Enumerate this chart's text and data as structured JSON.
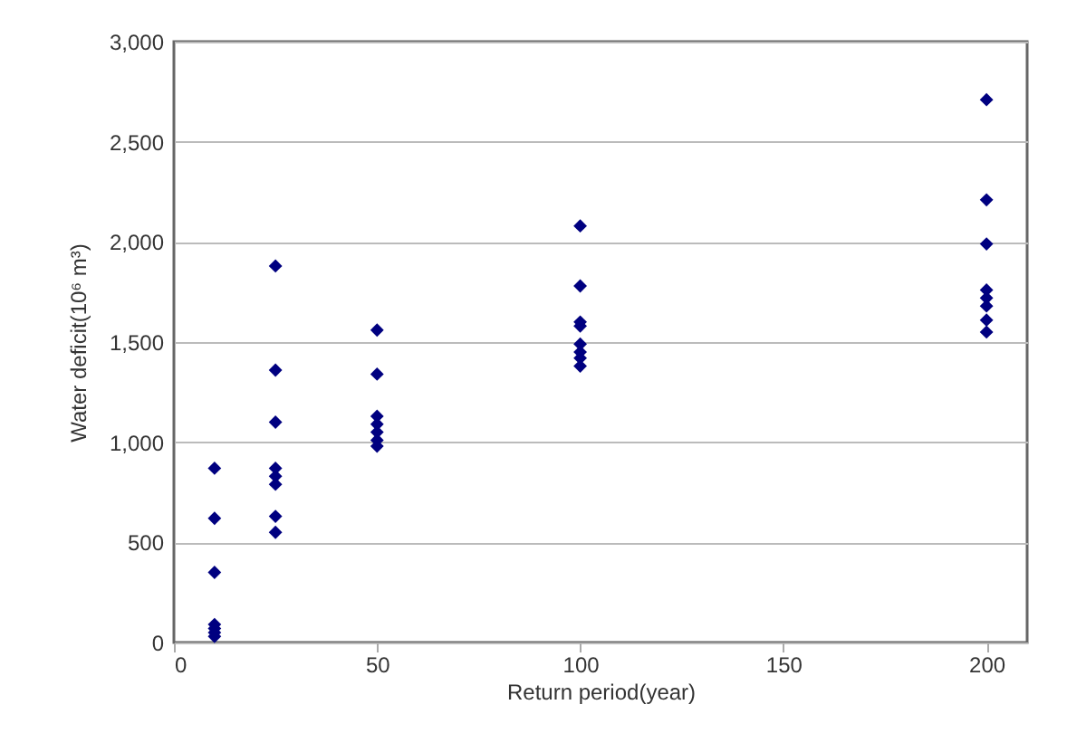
{
  "chart_data": {
    "type": "scatter",
    "xlabel": "Return period(year)",
    "ylabel": "Water deficit(10⁶ m³)",
    "x": [
      10,
      10,
      10,
      10,
      10,
      10,
      10,
      25,
      25,
      25,
      25,
      25,
      25,
      25,
      25,
      50,
      50,
      50,
      50,
      50,
      50,
      50,
      100,
      100,
      100,
      100,
      100,
      100,
      100,
      100,
      200,
      200,
      200,
      200,
      200,
      200,
      200,
      200
    ],
    "series": [
      {
        "color": "#000080",
        "values": [
          870,
          620,
          350,
          90,
          70,
          50,
          30,
          1880,
          1360,
          1100,
          870,
          830,
          790,
          630,
          550,
          1560,
          1340,
          1130,
          1090,
          1050,
          1010,
          980,
          2080,
          1780,
          1600,
          1580,
          1490,
          1450,
          1420,
          1380,
          2710,
          2210,
          1990,
          1760,
          1720,
          1680,
          1610,
          1550
        ]
      }
    ],
    "xlim": [
      0,
      210
    ],
    "xticks": [
      0,
      50,
      100,
      150,
      200
    ],
    "ylim": [
      0,
      3000
    ],
    "yticks": [
      0,
      500,
      {
        "value": 1000,
        "label": "1,000"
      },
      {
        "value": 1500,
        "label": "1,500"
      },
      {
        "value": 2000,
        "label": "2,000"
      },
      {
        "value": 2500,
        "label": "2,500"
      },
      {
        "value": 3000,
        "label": "3,000"
      }
    ],
    "grid": "y",
    "marker": "diamond",
    "legend": false
  }
}
